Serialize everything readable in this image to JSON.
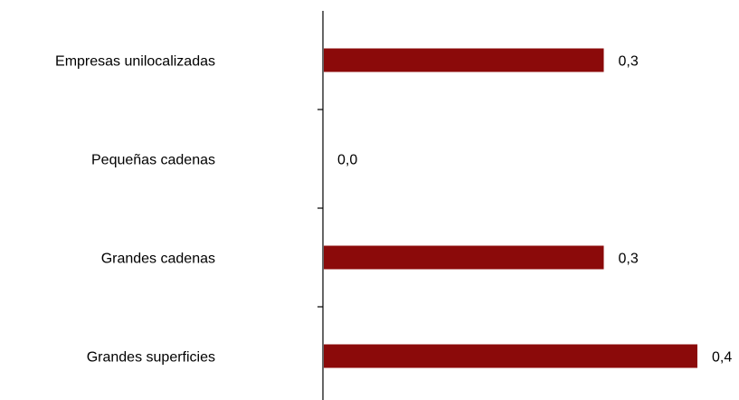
{
  "chart_data": {
    "type": "bar",
    "orientation": "horizontal",
    "title": "",
    "xlabel": "",
    "ylabel": "",
    "categories": [
      "Empresas unilocalizadas",
      "Pequeñas cadenas",
      "Grandes cadenas",
      "Grandes superficies"
    ],
    "values": [
      0.3,
      0.0,
      0.3,
      0.4
    ],
    "value_labels": [
      "0,3",
      "0,0",
      "0,3",
      "0,4"
    ],
    "xlim": [
      0,
      0.4
    ],
    "grid": false,
    "legend": "none",
    "bar_color": "#8b0a0a"
  }
}
